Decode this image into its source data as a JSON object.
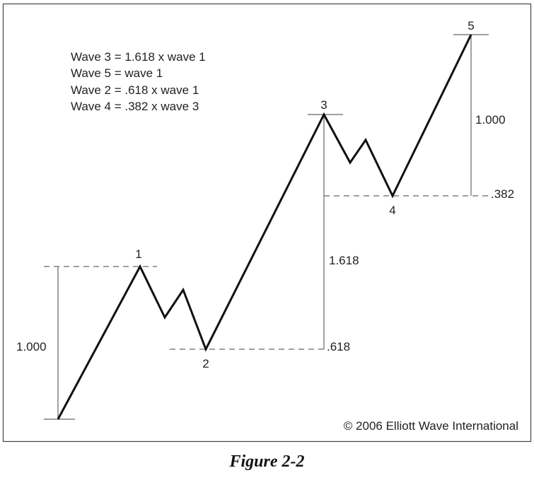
{
  "notes": [
    "Wave 3 = 1.618 x wave 1",
    "Wave 5 = wave 1",
    "Wave 2 = .618 x wave 1",
    "Wave 4 = .382 x wave 3"
  ],
  "wave_labels": [
    "1",
    "2",
    "3",
    "4",
    "5"
  ],
  "ratio_labels": {
    "wave1_length": "1.000",
    "wave3_length": "1.618",
    "wave2_retrace": ".618",
    "wave5_length": "1.000",
    "wave4_retrace": ".382"
  },
  "copyright": "© 2006 Elliott Wave International",
  "caption": "Figure 2-2",
  "colors": {
    "line": "#111111",
    "dashed": "#666666",
    "frame": "#444444"
  }
}
